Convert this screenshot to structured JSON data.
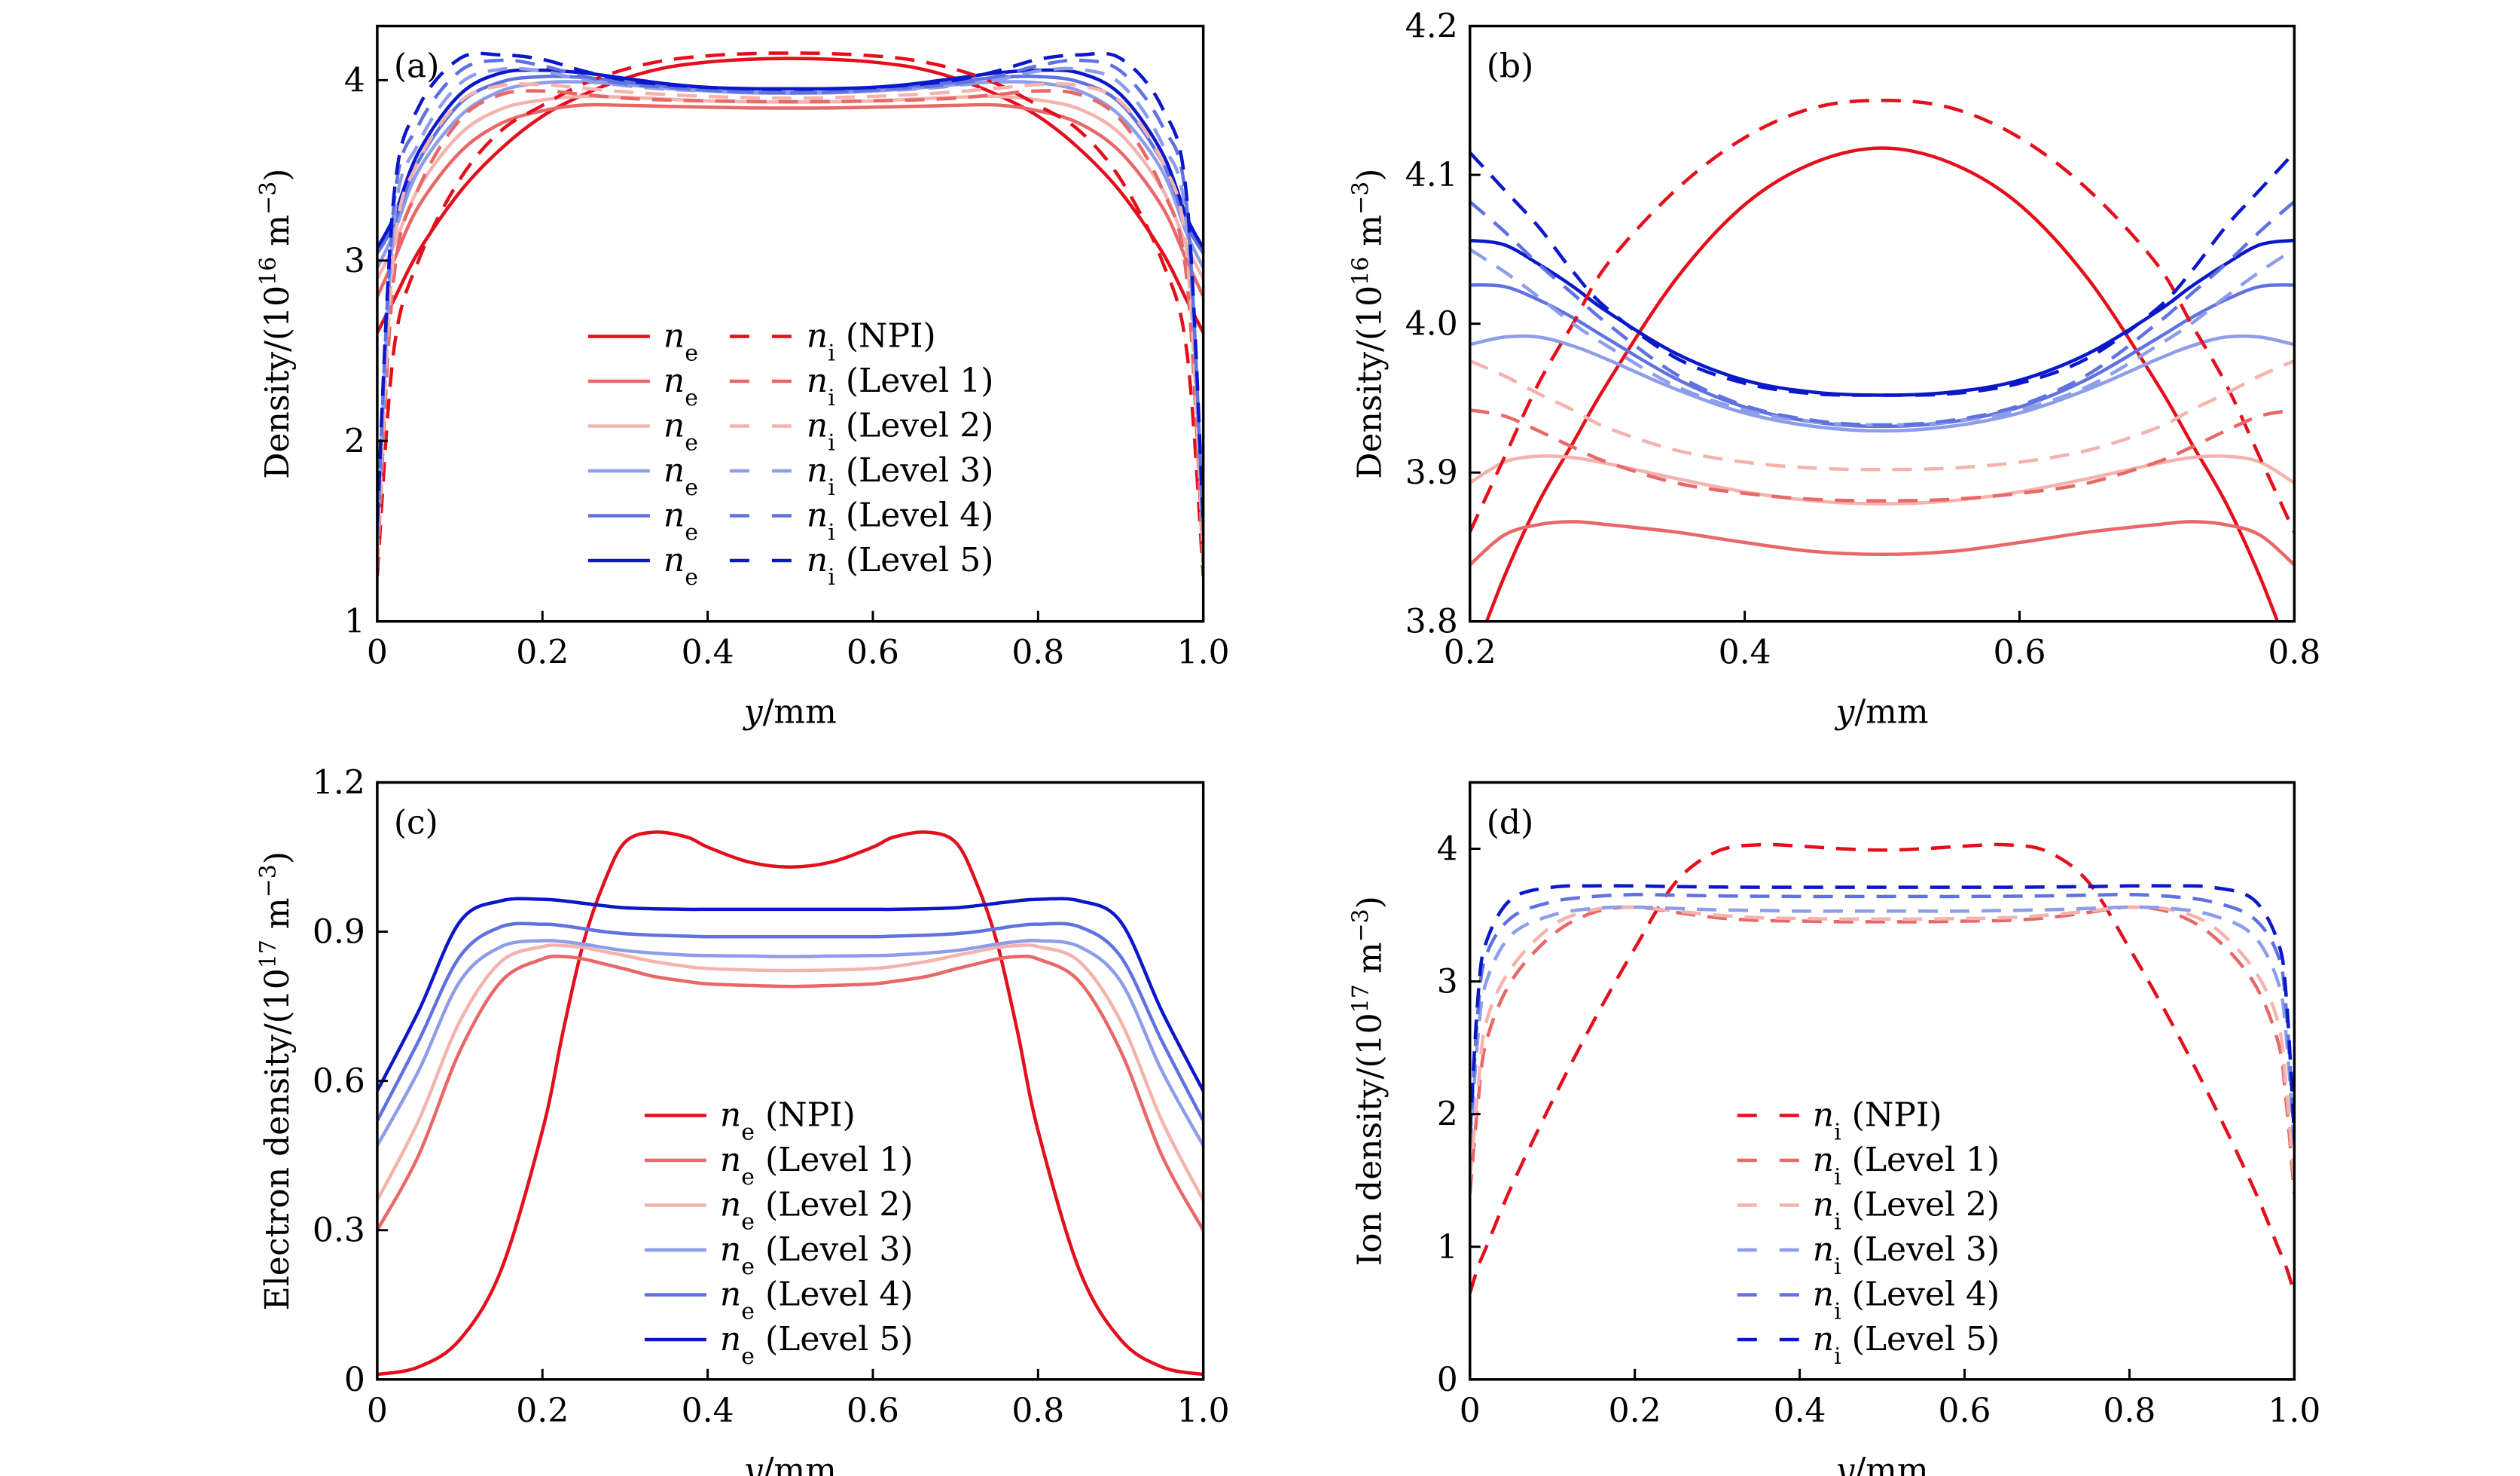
{
  "figure": {
    "levels": [
      "NPI",
      "Level 1",
      "Level 2",
      "Level 3",
      "Level 4",
      "Level 5"
    ],
    "colors": {
      "NPI": "#e3101c",
      "Level 1": "#e86868",
      "Level 2": "#f4b3ad",
      "Level 3": "#8d9de9",
      "Level 4": "#5f72df",
      "Level 5": "#0b18c9"
    }
  },
  "chart_data": [
    {
      "id": "a",
      "panel_label": "(a)",
      "type": "line",
      "xlabel_italic": "y",
      "xlabel_rest": "/mm",
      "ylabel": "Density/(10",
      "ylabel_exp": "16",
      "ylabel_unit": " m",
      "ylabel_unit_exp": "−3",
      "ylabel_close": ")",
      "xlim": [
        0,
        1.0
      ],
      "ylim": [
        1,
        4.3
      ],
      "xticks": [
        0,
        0.2,
        0.4,
        0.6,
        0.8,
        1.0
      ],
      "xtick_labels": [
        "0",
        "0.2",
        "0.4",
        "0.6",
        "0.8",
        "1.0"
      ],
      "yticks": [
        1,
        2,
        3,
        4
      ],
      "ytick_labels": [
        "1",
        "2",
        "3",
        "4"
      ],
      "legend": {
        "placement": "center",
        "columns": 2,
        "entries": [
          {
            "ne": "n",
            "ne_sub": "e",
            "ni": "n",
            "ni_sub": "i",
            "label": "(NPI)"
          },
          {
            "ne": "n",
            "ne_sub": "e",
            "ni": "n",
            "ni_sub": "i",
            "label": "(Level 1)"
          },
          {
            "ne": "n",
            "ne_sub": "e",
            "ni": "n",
            "ni_sub": "i",
            "label": "(Level 2)"
          },
          {
            "ne": "n",
            "ne_sub": "e",
            "ni": "n",
            "ni_sub": "i",
            "label": "(Level 3)"
          },
          {
            "ne": "n",
            "ne_sub": "e",
            "ni": "n",
            "ni_sub": "i",
            "label": "(Level 4)"
          },
          {
            "ne": "n",
            "ne_sub": "e",
            "ni": "n",
            "ni_sub": "i",
            "label": "(Level 5)"
          }
        ]
      },
      "x": [
        0,
        0.02,
        0.05,
        0.1,
        0.15,
        0.2,
        0.25,
        0.3,
        0.35,
        0.4,
        0.45,
        0.5
      ],
      "symmetric_about": 0.5,
      "series": [
        {
          "name": "ne (NPI)",
          "style": "solid",
          "level": "NPI",
          "values": [
            2.6,
            2.78,
            3.05,
            3.38,
            3.62,
            3.8,
            3.92,
            4.01,
            4.07,
            4.1,
            4.115,
            4.12
          ]
        },
        {
          "name": "ne (Level 1)",
          "style": "solid",
          "level": "Level 1",
          "values": [
            2.8,
            3.0,
            3.3,
            3.6,
            3.76,
            3.83,
            3.862,
            3.86,
            3.855,
            3.85,
            3.846,
            3.845
          ]
        },
        {
          "name": "ne (Level 2)",
          "style": "solid",
          "level": "Level 2",
          "values": [
            2.9,
            3.08,
            3.4,
            3.7,
            3.84,
            3.89,
            3.91,
            3.905,
            3.895,
            3.885,
            3.88,
            3.879
          ]
        },
        {
          "name": "ne (Level 3)",
          "style": "solid",
          "level": "Level 3",
          "values": [
            2.96,
            3.15,
            3.5,
            3.8,
            3.94,
            3.985,
            3.99,
            3.975,
            3.955,
            3.94,
            3.93,
            3.928
          ]
        },
        {
          "name": "ne (Level 4)",
          "style": "solid",
          "level": "Level 4",
          "values": [
            3.04,
            3.2,
            3.55,
            3.87,
            3.99,
            4.02,
            4.015,
            3.99,
            3.965,
            3.945,
            3.933,
            3.93
          ]
        },
        {
          "name": "ne (Level 5)",
          "style": "solid",
          "level": "Level 5",
          "values": [
            3.07,
            3.24,
            3.6,
            3.92,
            4.04,
            4.055,
            4.04,
            4.01,
            3.98,
            3.96,
            3.953,
            3.952
          ]
        },
        {
          "name": "ni (NPI)",
          "style": "dashed",
          "level": "NPI",
          "values": [
            1.25,
            2.5,
            3.0,
            3.45,
            3.72,
            3.86,
            3.98,
            4.06,
            4.11,
            4.135,
            4.147,
            4.15
          ]
        },
        {
          "name": "ni (Level 1)",
          "style": "dashed",
          "level": "Level 1",
          "values": [
            1.3,
            2.9,
            3.4,
            3.78,
            3.92,
            3.94,
            3.92,
            3.9,
            3.89,
            3.885,
            3.882,
            3.88
          ]
        },
        {
          "name": "ni (Level 2)",
          "style": "dashed",
          "level": "Level 2",
          "values": [
            1.35,
            3.05,
            3.55,
            3.88,
            3.97,
            3.975,
            3.955,
            3.935,
            3.92,
            3.91,
            3.903,
            3.9
          ]
        },
        {
          "name": "ni (Level 3)",
          "style": "dashed",
          "level": "Level 3",
          "values": [
            1.45,
            3.2,
            3.65,
            3.98,
            4.06,
            4.05,
            4.0,
            3.97,
            3.95,
            3.94,
            3.932,
            3.93
          ]
        },
        {
          "name": "ni (Level 4)",
          "style": "dashed",
          "level": "Level 4",
          "values": [
            1.5,
            3.3,
            3.75,
            4.05,
            4.11,
            4.08,
            4.02,
            3.98,
            3.96,
            3.945,
            3.934,
            3.932
          ]
        },
        {
          "name": "ni (Level 5)",
          "style": "dashed",
          "level": "Level 5",
          "values": [
            1.55,
            3.35,
            3.85,
            4.12,
            4.14,
            4.115,
            4.05,
            4.0,
            3.975,
            3.96,
            3.952,
            3.95
          ]
        }
      ]
    },
    {
      "id": "b",
      "panel_label": "(b)",
      "type": "line",
      "xlabel_italic": "y",
      "xlabel_rest": "/mm",
      "ylabel": "Density/(10",
      "ylabel_exp": "16",
      "ylabel_unit": " m",
      "ylabel_unit_exp": "−3",
      "ylabel_close": ")",
      "xlim": [
        0.2,
        0.8
      ],
      "ylim": [
        3.8,
        4.2
      ],
      "xticks": [
        0.2,
        0.4,
        0.6,
        0.8
      ],
      "xtick_labels": [
        "0.2",
        "0.4",
        "0.6",
        "0.8"
      ],
      "yticks": [
        3.8,
        3.9,
        4.0,
        4.1,
        4.2
      ],
      "ytick_labels": [
        "3.8",
        "3.9",
        "4.0",
        "4.1",
        "4.2"
      ],
      "x": [
        0.2,
        0.225,
        0.25,
        0.275,
        0.3,
        0.35,
        0.4,
        0.45,
        0.5
      ],
      "symmetric_about": 0.5,
      "series": [
        {
          "name": "ne (NPI)",
          "style": "solid",
          "level": "NPI",
          "values": [
            3.77,
            3.83,
            3.88,
            3.92,
            3.96,
            4.03,
            4.08,
            4.108,
            4.118
          ]
        },
        {
          "name": "ne (Level 1)",
          "style": "solid",
          "level": "Level 1",
          "values": [
            3.838,
            3.858,
            3.865,
            3.867,
            3.865,
            3.86,
            3.853,
            3.847,
            3.845
          ]
        },
        {
          "name": "ne (Level 2)",
          "style": "solid",
          "level": "Level 2",
          "values": [
            3.893,
            3.907,
            3.911,
            3.91,
            3.906,
            3.896,
            3.887,
            3.881,
            3.879
          ]
        },
        {
          "name": "ne (Level 3)",
          "style": "solid",
          "level": "Level 3",
          "values": [
            3.986,
            3.991,
            3.991,
            3.985,
            3.976,
            3.956,
            3.94,
            3.931,
            3.928
          ]
        },
        {
          "name": "ne (Level 4)",
          "style": "solid",
          "level": "Level 4",
          "values": [
            4.026,
            4.025,
            4.016,
            4.004,
            3.99,
            3.963,
            3.944,
            3.934,
            3.931
          ]
        },
        {
          "name": "ne (Level 5)",
          "style": "solid",
          "level": "Level 5",
          "values": [
            4.056,
            4.053,
            4.04,
            4.025,
            4.008,
            3.98,
            3.962,
            3.954,
            3.952
          ]
        },
        {
          "name": "ni (NPI)",
          "style": "dashed",
          "level": "NPI",
          "values": [
            3.86,
            3.91,
            3.96,
            4.0,
            4.04,
            4.09,
            4.125,
            4.145,
            4.15
          ]
        },
        {
          "name": "ni (Level 1)",
          "style": "dashed",
          "level": "Level 1",
          "values": [
            3.942,
            3.938,
            3.928,
            3.917,
            3.907,
            3.893,
            3.886,
            3.882,
            3.881
          ]
        },
        {
          "name": "ni (Level 2)",
          "style": "dashed",
          "level": "Level 2",
          "values": [
            3.975,
            3.965,
            3.953,
            3.942,
            3.93,
            3.915,
            3.907,
            3.903,
            3.902
          ]
        },
        {
          "name": "ni (Level 3)",
          "style": "dashed",
          "level": "Level 3",
          "values": [
            4.05,
            4.035,
            4.018,
            4.0,
            3.985,
            3.958,
            3.942,
            3.934,
            3.932
          ]
        },
        {
          "name": "ni (Level 4)",
          "style": "dashed",
          "level": "Level 4",
          "values": [
            4.082,
            4.062,
            4.04,
            4.02,
            4.0,
            3.966,
            3.945,
            3.935,
            3.932
          ]
        },
        {
          "name": "ni (Level 5)",
          "style": "dashed",
          "level": "Level 5",
          "values": [
            4.115,
            4.09,
            4.065,
            4.035,
            4.01,
            3.977,
            3.96,
            3.953,
            3.952
          ]
        }
      ]
    },
    {
      "id": "c",
      "panel_label": "(c)",
      "type": "line",
      "xlabel_italic": "y",
      "xlabel_rest": "/mm",
      "ylabel": "Electron density/(10",
      "ylabel_exp": "17",
      "ylabel_unit": " m",
      "ylabel_unit_exp": "−3",
      "ylabel_close": ")",
      "xlim": [
        0,
        1.0
      ],
      "ylim": [
        0,
        1.2
      ],
      "xticks": [
        0,
        0.2,
        0.4,
        0.6,
        0.8,
        1.0
      ],
      "xtick_labels": [
        "0",
        "0.2",
        "0.4",
        "0.6",
        "0.8",
        "1.0"
      ],
      "yticks": [
        0,
        0.3,
        0.6,
        0.9,
        1.2
      ],
      "ytick_labels": [
        "0",
        "0.3",
        "0.6",
        "0.9",
        "1.2"
      ],
      "legend": {
        "placement": "center",
        "columns": 1,
        "entries": [
          {
            "sym": "n",
            "sub": "e",
            "label": "(NPI)"
          },
          {
            "sym": "n",
            "sub": "e",
            "label": "(Level 1)"
          },
          {
            "sym": "n",
            "sub": "e",
            "label": "(Level 2)"
          },
          {
            "sym": "n",
            "sub": "e",
            "label": "(Level 3)"
          },
          {
            "sym": "n",
            "sub": "e",
            "label": "(Level 4)"
          },
          {
            "sym": "n",
            "sub": "e",
            "label": "(Level 5)"
          }
        ]
      },
      "x": [
        0,
        0.05,
        0.1,
        0.15,
        0.2,
        0.225,
        0.25,
        0.275,
        0.3,
        0.335,
        0.375,
        0.4,
        0.45,
        0.5
      ],
      "symmetric_about": 0.5,
      "series": [
        {
          "name": "ne (NPI)",
          "style": "solid",
          "level": "NPI",
          "values": [
            0.01,
            0.025,
            0.08,
            0.22,
            0.5,
            0.7,
            0.88,
            1.0,
            1.08,
            1.1,
            1.09,
            1.07,
            1.04,
            1.03
          ]
        },
        {
          "name": "ne (Level 1)",
          "style": "solid",
          "level": "Level 1",
          "values": [
            0.3,
            0.45,
            0.66,
            0.8,
            0.845,
            0.85,
            0.845,
            0.835,
            0.825,
            0.81,
            0.8,
            0.795,
            0.792,
            0.79
          ]
        },
        {
          "name": "ne (Level 2)",
          "style": "solid",
          "level": "Level 2",
          "values": [
            0.36,
            0.52,
            0.72,
            0.84,
            0.87,
            0.872,
            0.868,
            0.86,
            0.852,
            0.84,
            0.83,
            0.826,
            0.823,
            0.822
          ]
        },
        {
          "name": "ne (Level 3)",
          "style": "solid",
          "level": "Level 3",
          "values": [
            0.47,
            0.62,
            0.8,
            0.87,
            0.882,
            0.88,
            0.875,
            0.868,
            0.862,
            0.857,
            0.853,
            0.852,
            0.851,
            0.85
          ]
        },
        {
          "name": "ne (Level 4)",
          "style": "solid",
          "level": "Level 4",
          "values": [
            0.52,
            0.68,
            0.85,
            0.91,
            0.915,
            0.912,
            0.906,
            0.9,
            0.896,
            0.893,
            0.891,
            0.89,
            0.89,
            0.89
          ]
        },
        {
          "name": "ne (Level 5)",
          "style": "solid",
          "level": "Level 5",
          "values": [
            0.58,
            0.74,
            0.92,
            0.962,
            0.965,
            0.962,
            0.957,
            0.952,
            0.948,
            0.946,
            0.945,
            0.945,
            0.945,
            0.945
          ]
        }
      ]
    },
    {
      "id": "d",
      "panel_label": "(d)",
      "type": "line",
      "xlabel_italic": "y",
      "xlabel_rest": "/mm",
      "ylabel": "Ion density/(10",
      "ylabel_exp": "17",
      "ylabel_unit": " m",
      "ylabel_unit_exp": "−3",
      "ylabel_close": ")",
      "xlim": [
        0,
        1.0
      ],
      "ylim": [
        0,
        4.5
      ],
      "xticks": [
        0,
        0.2,
        0.4,
        0.6,
        0.8,
        1.0
      ],
      "xtick_labels": [
        "0",
        "0.2",
        "0.4",
        "0.6",
        "0.8",
        "1.0"
      ],
      "yticks": [
        0,
        1,
        2,
        3,
        4
      ],
      "ytick_labels": [
        "0",
        "1",
        "2",
        "3",
        "4"
      ],
      "legend": {
        "placement": "center",
        "columns": 1,
        "entries": [
          {
            "sym": "n",
            "sub": "i",
            "label": "(NPI)"
          },
          {
            "sym": "n",
            "sub": "i",
            "label": "(Level 1)"
          },
          {
            "sym": "n",
            "sub": "i",
            "label": "(Level 2)"
          },
          {
            "sym": "n",
            "sub": "i",
            "label": "(Level 3)"
          },
          {
            "sym": "n",
            "sub": "i",
            "label": "(Level 4)"
          },
          {
            "sym": "n",
            "sub": "i",
            "label": "(Level 5)"
          }
        ]
      },
      "x": [
        0,
        0.01,
        0.02,
        0.05,
        0.1,
        0.15,
        0.2,
        0.25,
        0.3,
        0.35,
        0.4,
        0.45,
        0.5
      ],
      "symmetric_about": 0.5,
      "series": [
        {
          "name": "ni (NPI)",
          "style": "dashed",
          "level": "NPI",
          "values": [
            0.65,
            0.85,
            1.0,
            1.45,
            2.1,
            2.7,
            3.25,
            3.75,
            3.98,
            4.03,
            4.02,
            4.0,
            3.99
          ]
        },
        {
          "name": "ni (Level 1)",
          "style": "dashed",
          "level": "Level 1",
          "values": [
            1.4,
            2.1,
            2.55,
            3.0,
            3.35,
            3.52,
            3.56,
            3.52,
            3.48,
            3.46,
            3.455,
            3.45,
            3.45
          ]
        },
        {
          "name": "ni (Level 2)",
          "style": "dashed",
          "level": "Level 2",
          "values": [
            1.5,
            2.2,
            2.7,
            3.1,
            3.42,
            3.54,
            3.56,
            3.53,
            3.5,
            3.48,
            3.475,
            3.47,
            3.47
          ]
        },
        {
          "name": "ni (Level 3)",
          "style": "dashed",
          "level": "Level 3",
          "values": [
            1.75,
            2.6,
            3.0,
            3.35,
            3.5,
            3.55,
            3.56,
            3.55,
            3.54,
            3.535,
            3.53,
            3.53,
            3.53
          ]
        },
        {
          "name": "ni (Level 4)",
          "style": "dashed",
          "level": "Level 4",
          "values": [
            1.8,
            2.8,
            3.2,
            3.48,
            3.6,
            3.64,
            3.655,
            3.65,
            3.645,
            3.642,
            3.64,
            3.64,
            3.64
          ]
        },
        {
          "name": "ni (Level 5)",
          "style": "dashed",
          "level": "Level 5",
          "values": [
            1.85,
            2.9,
            3.3,
            3.62,
            3.71,
            3.72,
            3.72,
            3.715,
            3.712,
            3.71,
            3.71,
            3.71,
            3.71
          ]
        }
      ]
    }
  ]
}
